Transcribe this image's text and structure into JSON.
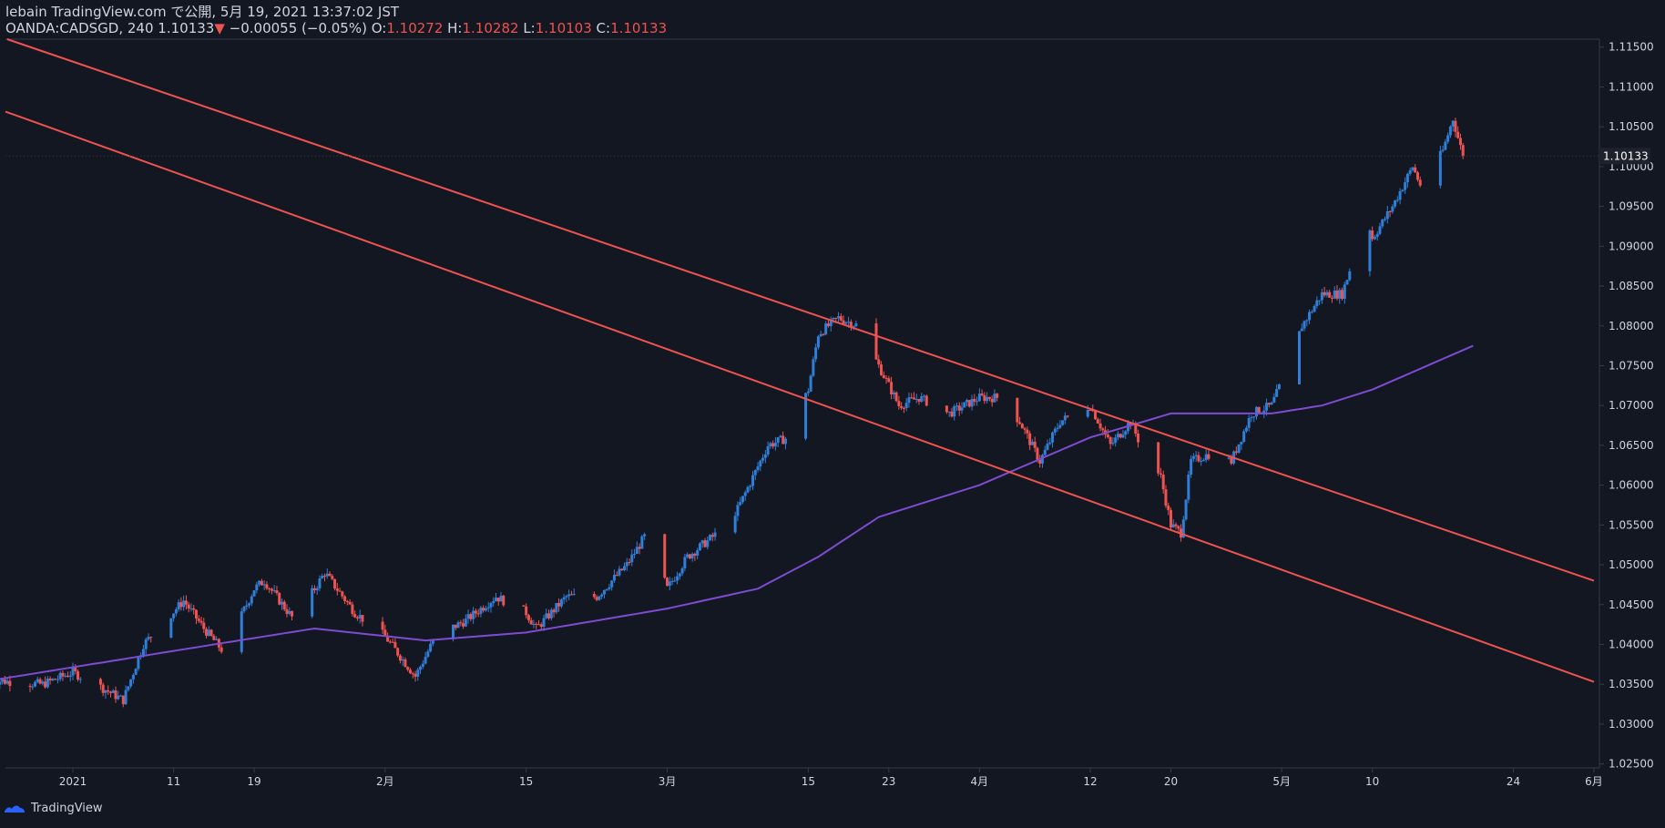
{
  "header": {
    "line1": "lebain TradingView.com で公開, 5月 19, 2021 13:37:02 JST",
    "symbol": "OANDA:CADSGD, 240",
    "last": "1.10133",
    "arrow": "▼",
    "change": "−0.00055 (−0.05%)",
    "o_label": "O:",
    "o": "1.10272",
    "h_label": "H:",
    "h": "1.10282",
    "l_label": "L:",
    "l": "1.10103",
    "c_label": "C:",
    "c": "1.10133"
  },
  "footer": {
    "brand": "TradingView"
  },
  "colors": {
    "bg": "#131722",
    "up": "#2f7fd8",
    "down": "#ef5350",
    "ma": "#7e4bd1",
    "trend": "#ef5350",
    "text": "#d1d4dc",
    "axis": "#363a45"
  },
  "chart_data": {
    "type": "candlestick",
    "symbol": "OANDA:CADSGD",
    "timeframe": "240",
    "y_axis": {
      "ylim": [
        1.0245,
        1.116
      ],
      "ticks": [
        "1.11500",
        "1.11000",
        "1.10500",
        "1.10000",
        "1.09500",
        "1.09000",
        "1.08500",
        "1.08000",
        "1.07500",
        "1.07000",
        "1.06500",
        "1.06000",
        "1.05500",
        "1.05000",
        "1.04500",
        "1.04000",
        "1.03500",
        "1.03000",
        "1.02500"
      ],
      "last_price_label": "1.10133"
    },
    "x_axis": {
      "ticks": [
        "2021",
        "11",
        "19",
        "2月",
        "15",
        "3月",
        "15",
        "23",
        "4月",
        "12",
        "20",
        "5月",
        "10",
        "24",
        "6月"
      ],
      "tick_dates": [
        "2021-01-01",
        "2021-01-11",
        "2021-01-19",
        "2021-02-01",
        "2021-02-15",
        "2021-03-01",
        "2021-03-15",
        "2021-03-23",
        "2021-04-01",
        "2021-04-12",
        "2021-04-20",
        "2021-05-01",
        "2021-05-10",
        "2021-05-24",
        "2021-06-01"
      ]
    },
    "price_path": [
      [
        "2020-12-24",
        1.0355
      ],
      [
        "2020-12-29",
        1.035
      ],
      [
        "2021-01-01",
        1.0365
      ],
      [
        "2021-01-04",
        1.0345
      ],
      [
        "2021-01-06",
        1.033
      ],
      [
        "2021-01-08",
        1.04
      ],
      [
        "2021-01-12",
        1.0455
      ],
      [
        "2021-01-14",
        1.042
      ],
      [
        "2021-01-16",
        1.039
      ],
      [
        "2021-01-19",
        1.047
      ],
      [
        "2021-01-20",
        1.048
      ],
      [
        "2021-01-23",
        1.043
      ],
      [
        "2021-01-26",
        1.049
      ],
      [
        "2021-01-29",
        1.044
      ],
      [
        "2021-02-01",
        1.041
      ],
      [
        "2021-02-04",
        1.036
      ],
      [
        "2021-02-06",
        1.041
      ],
      [
        "2021-02-09",
        1.043
      ],
      [
        "2021-02-12",
        1.046
      ],
      [
        "2021-02-15",
        1.044
      ],
      [
        "2021-02-16",
        1.042
      ],
      [
        "2021-02-19",
        1.046
      ],
      [
        "2021-02-22",
        1.046
      ],
      [
        "2021-02-25",
        1.05
      ],
      [
        "2021-02-27",
        1.054
      ],
      [
        "2021-03-01",
        1.047
      ],
      [
        "2021-03-03",
        1.051
      ],
      [
        "2021-03-06",
        1.054
      ],
      [
        "2021-03-08",
        1.057
      ],
      [
        "2021-03-11",
        1.065
      ],
      [
        "2021-03-13",
        1.066
      ],
      [
        "2021-03-15",
        1.072
      ],
      [
        "2021-03-16",
        1.079
      ],
      [
        "2021-03-18",
        1.081
      ],
      [
        "2021-03-20",
        1.08
      ],
      [
        "2021-03-22",
        1.075
      ],
      [
        "2021-03-24",
        1.07
      ],
      [
        "2021-03-26",
        1.071
      ],
      [
        "2021-03-29",
        1.069
      ],
      [
        "2021-04-01",
        1.071
      ],
      [
        "2021-04-03",
        1.071
      ],
      [
        "2021-04-05",
        1.068
      ],
      [
        "2021-04-07",
        1.063
      ],
      [
        "2021-04-09",
        1.068
      ],
      [
        "2021-04-12",
        1.07
      ],
      [
        "2021-04-14",
        1.065
      ],
      [
        "2021-04-16",
        1.068
      ],
      [
        "2021-04-17",
        1.065
      ],
      [
        "2021-04-19",
        1.061
      ],
      [
        "2021-04-20",
        1.055
      ],
      [
        "2021-04-21",
        1.054
      ],
      [
        "2021-04-22",
        1.063
      ],
      [
        "2021-04-24",
        1.064
      ],
      [
        "2021-04-26",
        1.063
      ],
      [
        "2021-04-28",
        1.069
      ],
      [
        "2021-04-30",
        1.07
      ],
      [
        "2021-05-02",
        1.076
      ],
      [
        "2021-05-03",
        1.08
      ],
      [
        "2021-05-05",
        1.084
      ],
      [
        "2021-05-07",
        1.084
      ],
      [
        "2021-05-08",
        1.088
      ],
      [
        "2021-05-09",
        1.096
      ],
      [
        "2021-05-10",
        1.091
      ],
      [
        "2021-05-12",
        1.095
      ],
      [
        "2021-05-14",
        1.1
      ],
      [
        "2021-05-15",
        1.097
      ],
      [
        "2021-05-17",
        1.102
      ],
      [
        "2021-05-18",
        1.106
      ],
      [
        "2021-05-19",
        1.1013
      ]
    ],
    "moving_average": [
      [
        "2020-12-24",
        1.0355
      ],
      [
        "2021-01-15",
        1.04
      ],
      [
        "2021-01-25",
        1.042
      ],
      [
        "2021-02-05",
        1.0405
      ],
      [
        "2021-02-15",
        1.0415
      ],
      [
        "2021-03-01",
        1.0445
      ],
      [
        "2021-03-10",
        1.047
      ],
      [
        "2021-03-16",
        1.051
      ],
      [
        "2021-03-22",
        1.056
      ],
      [
        "2021-04-01",
        1.06
      ],
      [
        "2021-04-12",
        1.066
      ],
      [
        "2021-04-20",
        1.069
      ],
      [
        "2021-04-30",
        1.069
      ],
      [
        "2021-05-05",
        1.07
      ],
      [
        "2021-05-10",
        1.072
      ],
      [
        "2021-05-20",
        1.0775
      ]
    ],
    "trendlines": [
      {
        "start": [
          "2020-12-22",
          1.1175
        ],
        "end": [
          "2021-06-01",
          1.048
        ]
      },
      {
        "start": [
          "2020-12-24",
          1.1075
        ],
        "end": [
          "2021-06-01",
          1.0353
        ]
      }
    ],
    "grid": false
  }
}
